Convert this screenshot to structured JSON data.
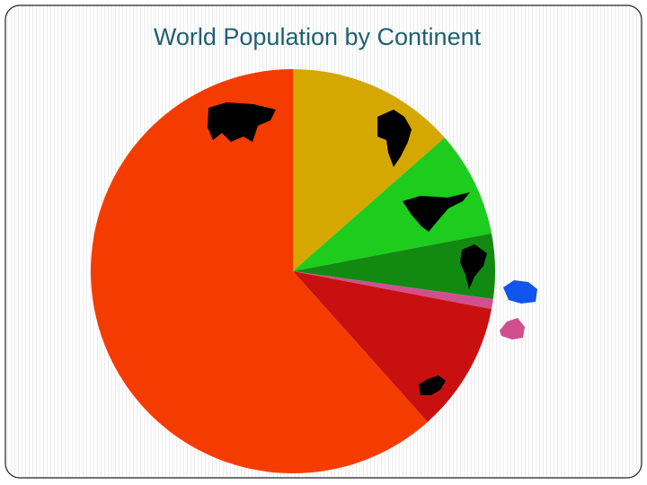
{
  "chart_data": {
    "type": "pie",
    "title": "World Population by Continent",
    "categories": [
      null,
      null,
      null,
      null,
      null,
      null,
      null
    ],
    "values": [
      13.5,
      8.5,
      5.2,
      0,
      0.8,
      10.4,
      61.6
    ],
    "colors": [
      "#d4a800",
      "#1ecc1e",
      "#128a12",
      "#1155ee",
      "#d0508f",
      "#c81010",
      "#f53c00"
    ],
    "start_angle": 0,
    "direction": "clockwise"
  }
}
